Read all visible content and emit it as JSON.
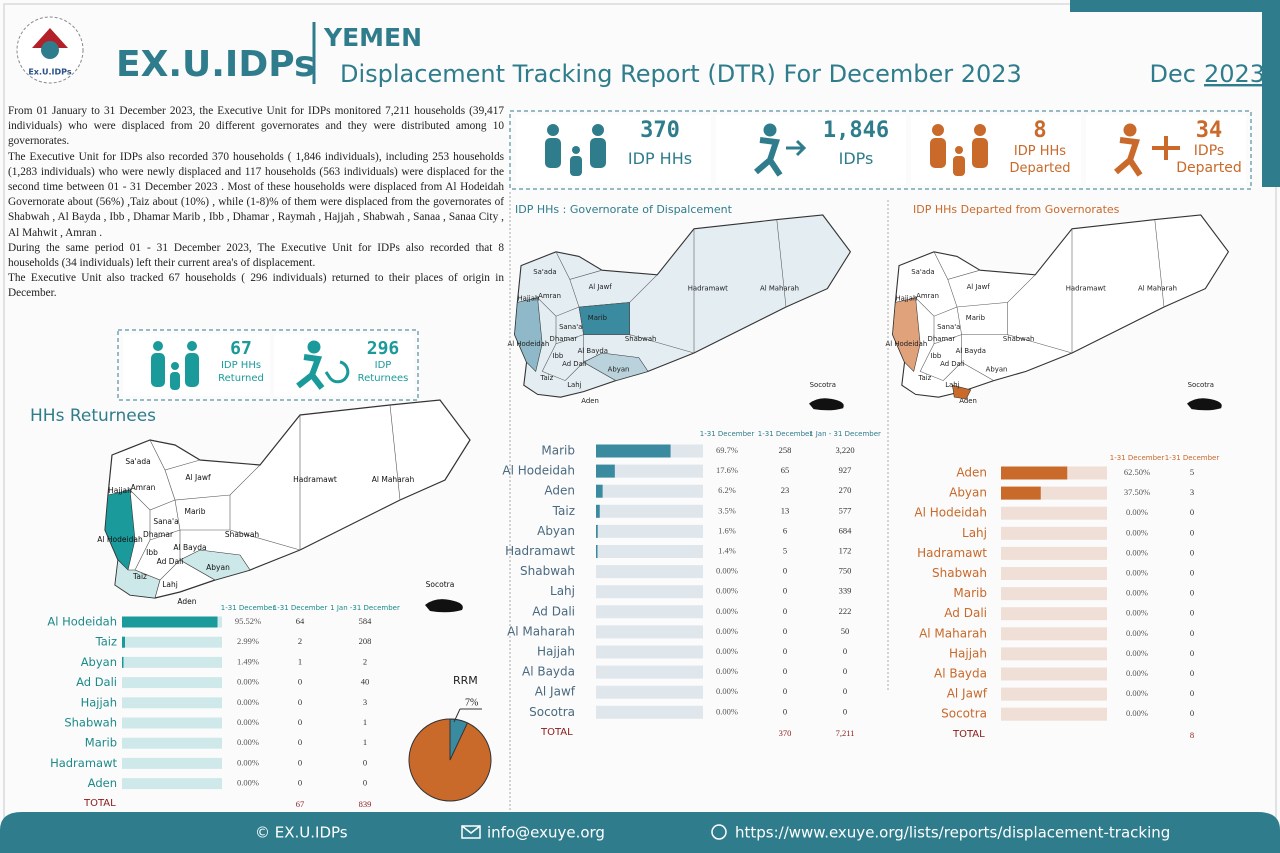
{
  "header": {
    "logo_text": "Ex.U.IDPs",
    "brand": "EX.U.IDPs",
    "country": "YEMEN",
    "title": "Displacement Tracking Report (DTR) For December 2023",
    "month": "Dec",
    "year": "2023"
  },
  "intro": [
    "From 01 January to 31 December 2023, the Executive Unit for IDPs monitored 7,211 households (39,417 individuals) who were displaced from 20 different governorates and they were distributed among 10 governorates.",
    "The Executive Unit for IDPs also recorded 370 households ( 1,846  individuals), including 253 households (1,283 individuals) who were newly displaced and  117 households (563 individuals) were displaced for the second time between 01 - 31 December 2023 . Most of these households were displaced from Al Hodeidah  Governorate about (56%) ,Taiz about (10%) , while (1-8)% of them were displaced from  the governorates of  Shabwah , Al Bayda , Ibb , Dhamar Marib , Ibb , Dhamar , Raymah , Hajjah , Shabwah , Sanaa , Sanaa City , Al Mahwit , Amran .",
    "During the same period 01 - 31 December 2023, The Executive Unit for IDPs also recorded that 8 households (34 individuals) left their current area's of displacement.",
    "The Executive Unit also tracked 67 households ( 296 individuals) returned to their places of origin in December."
  ],
  "kpis": [
    {
      "value": "370",
      "label": "IDP HHs"
    },
    {
      "value": "1,846",
      "label": "IDPs"
    },
    {
      "value": "8",
      "label": "IDP HHs Departed"
    },
    {
      "value": "34",
      "label": "IDPs Departed"
    }
  ],
  "returnee_kpis": [
    {
      "value": "67",
      "label": "IDP HHs Returned"
    },
    {
      "value": "296",
      "label": "IDP Returnees"
    }
  ],
  "map_labels": [
    "Sa'ada",
    "Al Jawf",
    "Amran",
    "Hajjah",
    "Hadramawt",
    "Al Maharah",
    "Marib",
    "Sana'a",
    "Al Hodeidah",
    "Dhamar",
    "Ibb",
    "Al Bayda",
    "Shabwah",
    "Ad Dali",
    "Abyan",
    "Taiz",
    "Lahj",
    "Aden",
    "Socotra"
  ],
  "returnees": {
    "title": "HHs Returnees",
    "columns": [
      "1-31 December",
      "1-31 December",
      "1 Jan -31 December"
    ],
    "rows": [
      {
        "governorate": "Al Hodeidah",
        "share": 95.52,
        "share_label": "95.52%",
        "hhs": "64",
        "individuals": "584"
      },
      {
        "governorate": "Taiz",
        "share": 2.99,
        "share_label": "2.99%",
        "hhs": "2",
        "individuals": "208"
      },
      {
        "governorate": "Abyan",
        "share": 1.49,
        "share_label": "1.49%",
        "hhs": "1",
        "individuals": "2"
      },
      {
        "governorate": "Ad Dali",
        "share": 0,
        "share_label": "0.00%",
        "hhs": "0",
        "individuals": "40"
      },
      {
        "governorate": "Hajjah",
        "share": 0,
        "share_label": "0.00%",
        "hhs": "0",
        "individuals": "3"
      },
      {
        "governorate": "Shabwah",
        "share": 0,
        "share_label": "0.00%",
        "hhs": "0",
        "individuals": "1"
      },
      {
        "governorate": "Marib",
        "share": 0,
        "share_label": "0.00%",
        "hhs": "0",
        "individuals": "1"
      },
      {
        "governorate": "Hadramawt",
        "share": 0,
        "share_label": "0.00%",
        "hhs": "0",
        "individuals": "0"
      },
      {
        "governorate": "Aden",
        "share": 0,
        "share_label": "0.00%",
        "hhs": "0",
        "individuals": "0"
      }
    ],
    "total_label": "TOTAL",
    "total_hhs": "67",
    "total_individuals": "839"
  },
  "displacement": {
    "map_title": "IDP HHs : Governorate of Dispalcement",
    "columns": [
      "1-31 December",
      "1-31 December",
      "1 Jan - 31 December"
    ],
    "rows": [
      {
        "governorate": "Marib",
        "share": 69.7,
        "share_label": "69.7%",
        "hhs": "258",
        "individuals": "3,220"
      },
      {
        "governorate": "Al Hodeidah",
        "share": 17.6,
        "share_label": "17.6%",
        "hhs": "65",
        "individuals": "927"
      },
      {
        "governorate": "Aden",
        "share": 6.2,
        "share_label": "6.2%",
        "hhs": "23",
        "individuals": "270"
      },
      {
        "governorate": "Taiz",
        "share": 3.5,
        "share_label": "3.5%",
        "hhs": "13",
        "individuals": "577"
      },
      {
        "governorate": "Abyan",
        "share": 1.6,
        "share_label": "1.6%",
        "hhs": "6",
        "individuals": "684"
      },
      {
        "governorate": "Hadramawt",
        "share": 1.4,
        "share_label": "1.4%",
        "hhs": "5",
        "individuals": "172"
      },
      {
        "governorate": "Shabwah",
        "share": 0,
        "share_label": "0.00%",
        "hhs": "0",
        "individuals": "750"
      },
      {
        "governorate": "Lahj",
        "share": 0,
        "share_label": "0.00%",
        "hhs": "0",
        "individuals": "339"
      },
      {
        "governorate": "Ad Dali",
        "share": 0,
        "share_label": "0.00%",
        "hhs": "0",
        "individuals": "222"
      },
      {
        "governorate": "Al Maharah",
        "share": 0,
        "share_label": "0.00%",
        "hhs": "0",
        "individuals": "50"
      },
      {
        "governorate": "Hajjah",
        "share": 0,
        "share_label": "0.00%",
        "hhs": "0",
        "individuals": "0"
      },
      {
        "governorate": "Al Bayda",
        "share": 0,
        "share_label": "0.00%",
        "hhs": "0",
        "individuals": "0"
      },
      {
        "governorate": "Al Jawf",
        "share": 0,
        "share_label": "0.00%",
        "hhs": "0",
        "individuals": "0"
      },
      {
        "governorate": "Socotra",
        "share": 0,
        "share_label": "0.00%",
        "hhs": "0",
        "individuals": "0"
      }
    ],
    "total_label": "TOTAL",
    "total_hhs": "370",
    "total_individuals": "7,211"
  },
  "departed": {
    "map_title": "IDP HHs Departed from Governorates",
    "columns": [
      "1-31 December",
      "1-31 December"
    ],
    "rows": [
      {
        "governorate": "Aden",
        "share": 62.5,
        "share_label": "62.50%",
        "hhs": "5"
      },
      {
        "governorate": "Abyan",
        "share": 37.5,
        "share_label": "37.50%",
        "hhs": "3"
      },
      {
        "governorate": "Al Hodeidah",
        "share": 0,
        "share_label": "0.00%",
        "hhs": "0"
      },
      {
        "governorate": "Lahj",
        "share": 0,
        "share_label": "0.00%",
        "hhs": "0"
      },
      {
        "governorate": "Hadramawt",
        "share": 0,
        "share_label": "0.00%",
        "hhs": "0"
      },
      {
        "governorate": "Shabwah",
        "share": 0,
        "share_label": "0.00%",
        "hhs": "0"
      },
      {
        "governorate": "Marib",
        "share": 0,
        "share_label": "0.00%",
        "hhs": "0"
      },
      {
        "governorate": "Ad Dali",
        "share": 0,
        "share_label": "0.00%",
        "hhs": "0"
      },
      {
        "governorate": "Al Maharah",
        "share": 0,
        "share_label": "0.00%",
        "hhs": "0"
      },
      {
        "governorate": "Hajjah",
        "share": 0,
        "share_label": "0.00%",
        "hhs": "0"
      },
      {
        "governorate": "Al Bayda",
        "share": 0,
        "share_label": "0.00%",
        "hhs": "0"
      },
      {
        "governorate": "Al Jawf",
        "share": 0,
        "share_label": "0.00%",
        "hhs": "0"
      },
      {
        "governorate": "Socotra",
        "share": 0,
        "share_label": "0.00%",
        "hhs": "0"
      }
    ],
    "total_label": "TOTAL",
    "total_hhs": "8"
  },
  "rrm": {
    "label": "RRM",
    "share": 7,
    "share_label": "7%"
  },
  "footer": {
    "copyright": "© EX.U.IDPs",
    "email": "info@exuye.org",
    "url": "https://www.exuye.org/lists/reports/displacement-tracking"
  }
}
